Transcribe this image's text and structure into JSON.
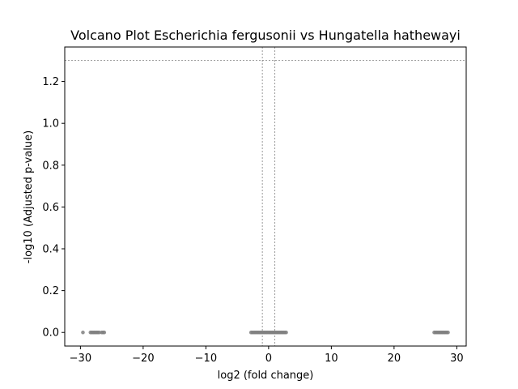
{
  "chart_data": {
    "type": "scatter",
    "title": "Volcano Plot Escherichia fergusonii vs Hungatella hathewayi",
    "xlabel": "log2 (fold change)",
    "ylabel": "-log10 (Adjusted p-value)",
    "xlim": [
      -32.5,
      31.5
    ],
    "ylim": [
      -0.065,
      1.365
    ],
    "xticks": [
      -30,
      -20,
      -10,
      0,
      10,
      20,
      30
    ],
    "xtick_labels": [
      "−30",
      "−20",
      "−10",
      "0",
      "10",
      "20",
      "30"
    ],
    "yticks": [
      0.0,
      0.2,
      0.4,
      0.6,
      0.8,
      1.0,
      1.2
    ],
    "ytick_labels": [
      "0.0",
      "0.2",
      "0.4",
      "0.6",
      "0.8",
      "1.0",
      "1.2"
    ],
    "grid": false,
    "threshold_lines": {
      "vertical_x": [
        -1,
        1
      ],
      "horizontal_y": 1.30103
    },
    "point_color": "#808080",
    "threshold_line_color": "#808080",
    "series": [
      {
        "points": [
          {
            "x": -29.6,
            "y": 0.0
          },
          {
            "x": -28.4,
            "y": 0.0
          },
          {
            "x": -28.2,
            "y": 0.0
          },
          {
            "x": -28.0,
            "y": 0.0
          },
          {
            "x": -27.8,
            "y": 0.0
          },
          {
            "x": -27.6,
            "y": 0.0
          },
          {
            "x": -27.4,
            "y": 0.0
          },
          {
            "x": -27.2,
            "y": 0.0
          },
          {
            "x": -27.0,
            "y": 0.0
          },
          {
            "x": -26.6,
            "y": 0.0
          },
          {
            "x": -26.4,
            "y": 0.0
          },
          {
            "x": -26.2,
            "y": 0.0
          },
          {
            "x": -2.8,
            "y": 0.0
          },
          {
            "x": -2.6,
            "y": 0.0
          },
          {
            "x": -2.4,
            "y": 0.0
          },
          {
            "x": -2.2,
            "y": 0.0
          },
          {
            "x": -2.0,
            "y": 0.0
          },
          {
            "x": -1.8,
            "y": 0.0
          },
          {
            "x": -1.6,
            "y": 0.0
          },
          {
            "x": -1.4,
            "y": 0.0
          },
          {
            "x": -1.2,
            "y": 0.0
          },
          {
            "x": -1.0,
            "y": 0.0
          },
          {
            "x": -0.8,
            "y": 0.0
          },
          {
            "x": -0.6,
            "y": 0.0
          },
          {
            "x": -0.4,
            "y": 0.0
          },
          {
            "x": -0.2,
            "y": 0.0
          },
          {
            "x": 0.0,
            "y": 0.0
          },
          {
            "x": 0.2,
            "y": 0.0
          },
          {
            "x": 0.4,
            "y": 0.0
          },
          {
            "x": 0.6,
            "y": 0.0
          },
          {
            "x": 0.8,
            "y": 0.0
          },
          {
            "x": 1.0,
            "y": 0.0
          },
          {
            "x": 1.2,
            "y": 0.0
          },
          {
            "x": 1.4,
            "y": 0.0
          },
          {
            "x": 1.6,
            "y": 0.0
          },
          {
            "x": 1.8,
            "y": 0.0
          },
          {
            "x": 2.0,
            "y": 0.0
          },
          {
            "x": 2.2,
            "y": 0.0
          },
          {
            "x": 2.4,
            "y": 0.0
          },
          {
            "x": 2.6,
            "y": 0.0
          },
          {
            "x": 2.8,
            "y": 0.0
          },
          {
            "x": 26.4,
            "y": 0.0
          },
          {
            "x": 26.6,
            "y": 0.0
          },
          {
            "x": 26.8,
            "y": 0.0
          },
          {
            "x": 27.0,
            "y": 0.0
          },
          {
            "x": 27.2,
            "y": 0.0
          },
          {
            "x": 27.4,
            "y": 0.0
          },
          {
            "x": 27.6,
            "y": 0.0
          },
          {
            "x": 27.8,
            "y": 0.0
          },
          {
            "x": 28.0,
            "y": 0.0
          },
          {
            "x": 28.2,
            "y": 0.0
          },
          {
            "x": 28.4,
            "y": 0.0
          },
          {
            "x": 28.6,
            "y": 0.0
          }
        ]
      }
    ]
  }
}
